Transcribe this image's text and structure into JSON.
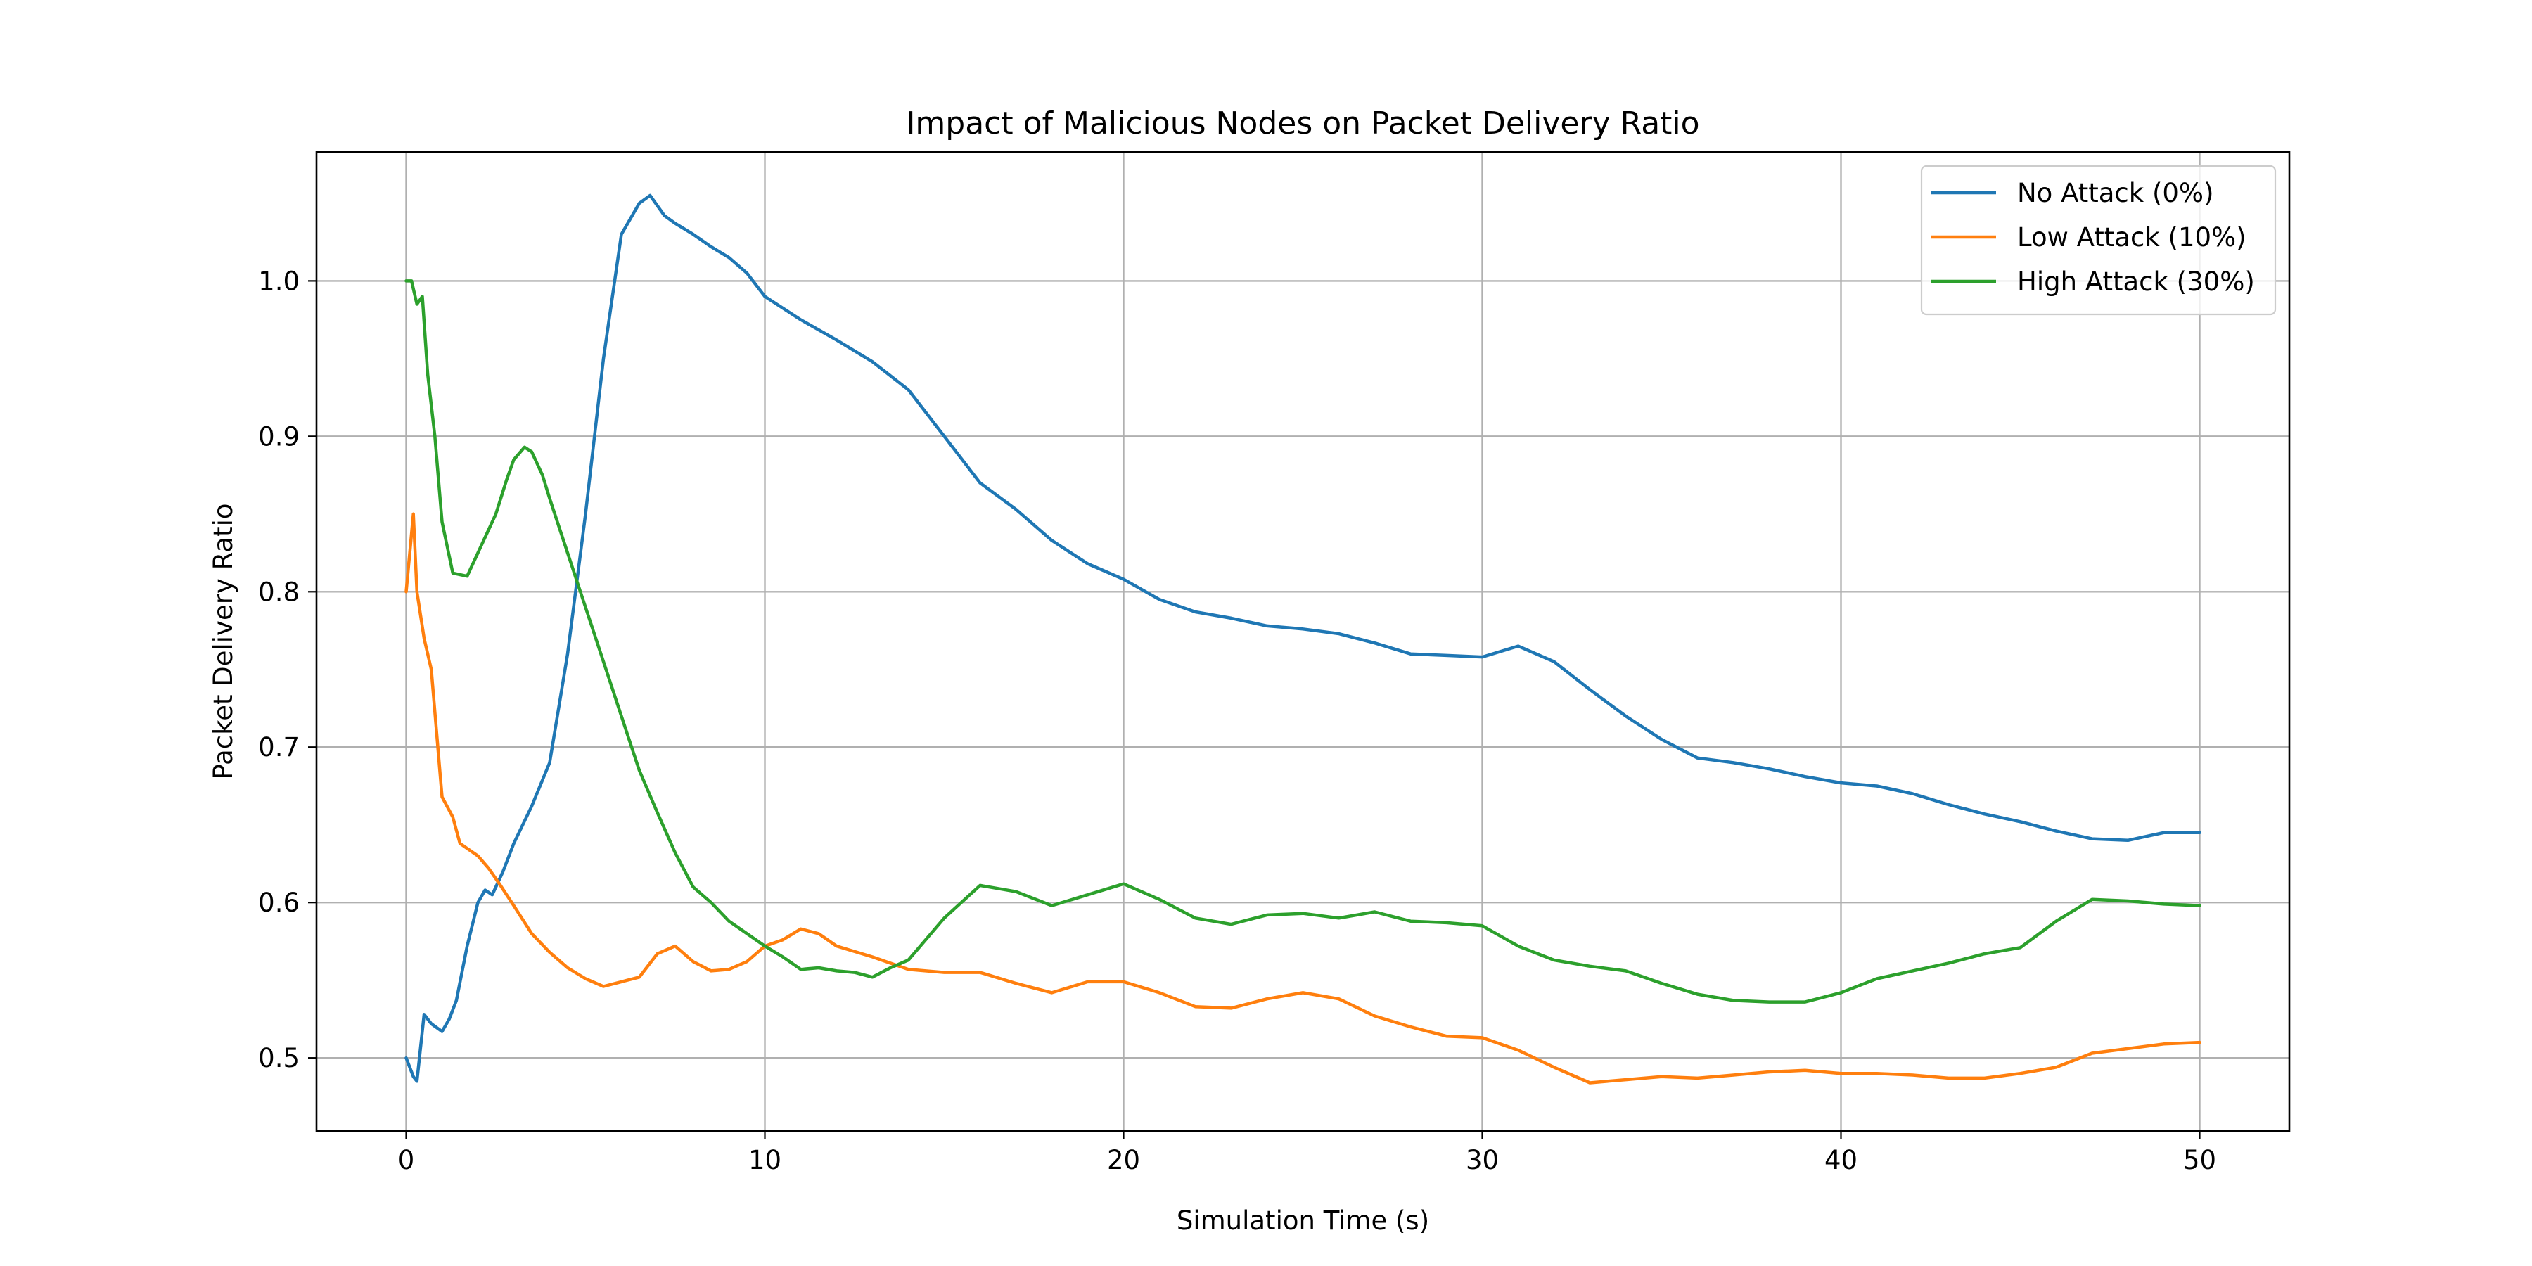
{
  "chart_data": {
    "type": "line",
    "title": "Impact of Malicious Nodes on Packet Delivery Ratio",
    "xlabel": "Simulation Time (s)",
    "ylabel": "Packet Delivery Ratio",
    "xlim": [
      -2.5,
      52.5
    ],
    "ylim": [
      0.453,
      1.083
    ],
    "xticks": [
      0,
      10,
      20,
      30,
      40,
      50
    ],
    "yticks": [
      0.5,
      0.6,
      0.7,
      0.8,
      0.9,
      1.0
    ],
    "xtick_labels": [
      "0",
      "10",
      "20",
      "30",
      "40",
      "50"
    ],
    "ytick_labels": [
      "0.5",
      "0.6",
      "0.7",
      "0.8",
      "0.9",
      "1.0"
    ],
    "grid": true,
    "legend_position": "top-right",
    "series": [
      {
        "name": "No Attack (0%)",
        "color": "#1f77b4",
        "x": [
          0,
          0.2,
          0.3,
          0.5,
          0.7,
          1,
          1.2,
          1.4,
          1.7,
          2,
          2.2,
          2.4,
          2.7,
          3,
          3.5,
          4,
          4.5,
          5,
          5.5,
          6,
          6.5,
          6.8,
          7.2,
          7.5,
          8,
          8.5,
          9,
          9.5,
          10,
          11,
          12,
          13,
          14,
          15,
          16,
          17,
          18,
          19,
          20,
          21,
          22,
          23,
          24,
          25,
          26,
          27,
          28,
          29,
          30,
          31,
          32,
          33,
          34,
          35,
          36,
          37,
          38,
          39,
          40,
          41,
          42,
          43,
          44,
          45,
          46,
          47,
          48,
          49,
          50
        ],
        "values": [
          0.5,
          0.488,
          0.485,
          0.528,
          0.522,
          0.517,
          0.525,
          0.537,
          0.572,
          0.6,
          0.608,
          0.605,
          0.62,
          0.638,
          0.662,
          0.69,
          0.76,
          0.85,
          0.95,
          1.03,
          1.05,
          1.055,
          1.042,
          1.037,
          1.03,
          1.022,
          1.015,
          1.005,
          0.99,
          0.975,
          0.962,
          0.948,
          0.93,
          0.9,
          0.87,
          0.853,
          0.833,
          0.818,
          0.808,
          0.795,
          0.787,
          0.783,
          0.778,
          0.776,
          0.773,
          0.767,
          0.76,
          0.759,
          0.758,
          0.765,
          0.755,
          0.737,
          0.72,
          0.705,
          0.693,
          0.69,
          0.686,
          0.681,
          0.677,
          0.675,
          0.67,
          0.663,
          0.657,
          0.652,
          0.646,
          0.641,
          0.64,
          0.645,
          0.645
        ]
      },
      {
        "name": "Low Attack (10%)",
        "color": "#ff7f0e",
        "x": [
          0,
          0.2,
          0.3,
          0.5,
          0.7,
          1,
          1.3,
          1.5,
          2,
          2.3,
          2.6,
          3,
          3.5,
          4,
          4.5,
          5,
          5.5,
          6,
          6.5,
          7,
          7.5,
          8,
          8.5,
          9,
          9.5,
          10,
          10.5,
          11,
          11.5,
          12,
          13,
          14,
          15,
          16,
          17,
          18,
          19,
          20,
          21,
          22,
          23,
          24,
          25,
          26,
          27,
          28,
          29,
          30,
          31,
          32,
          33,
          34,
          35,
          36,
          37,
          38,
          39,
          40,
          41,
          42,
          43,
          44,
          45,
          46,
          47,
          48,
          49,
          50
        ],
        "values": [
          0.8,
          0.85,
          0.8,
          0.77,
          0.75,
          0.668,
          0.655,
          0.638,
          0.63,
          0.622,
          0.612,
          0.598,
          0.58,
          0.568,
          0.558,
          0.551,
          0.546,
          0.549,
          0.552,
          0.567,
          0.572,
          0.562,
          0.556,
          0.557,
          0.562,
          0.572,
          0.576,
          0.583,
          0.58,
          0.572,
          0.565,
          0.557,
          0.555,
          0.555,
          0.548,
          0.542,
          0.549,
          0.549,
          0.542,
          0.533,
          0.532,
          0.538,
          0.542,
          0.538,
          0.527,
          0.52,
          0.514,
          0.513,
          0.505,
          0.494,
          0.484,
          0.486,
          0.488,
          0.487,
          0.489,
          0.491,
          0.492,
          0.49,
          0.49,
          0.489,
          0.487,
          0.487,
          0.49,
          0.494,
          0.503,
          0.506,
          0.509,
          0.51
        ]
      },
      {
        "name": "High Attack (30%)",
        "color": "#2ca02c",
        "x": [
          0,
          0.15,
          0.3,
          0.45,
          0.6,
          0.8,
          1,
          1.3,
          1.7,
          2,
          2.3,
          2.5,
          2.8,
          3,
          3.3,
          3.5,
          3.8,
          4,
          4.5,
          5,
          5.5,
          6,
          6.5,
          7,
          7.5,
          8,
          8.5,
          9,
          9.5,
          10,
          10.5,
          11,
          11.5,
          12,
          12.5,
          13,
          13.5,
          14,
          15,
          16,
          17,
          18,
          19,
          20,
          21,
          22,
          23,
          24,
          25,
          26,
          27,
          28,
          29,
          30,
          31,
          32,
          33,
          34,
          35,
          36,
          37,
          38,
          39,
          40,
          41,
          42,
          43,
          44,
          45,
          46,
          47,
          48,
          49,
          50
        ],
        "values": [
          1.0,
          1.0,
          0.985,
          0.99,
          0.94,
          0.9,
          0.845,
          0.812,
          0.81,
          0.825,
          0.84,
          0.85,
          0.872,
          0.885,
          0.893,
          0.89,
          0.875,
          0.86,
          0.825,
          0.79,
          0.755,
          0.72,
          0.685,
          0.658,
          0.632,
          0.61,
          0.6,
          0.588,
          0.58,
          0.572,
          0.565,
          0.557,
          0.558,
          0.556,
          0.555,
          0.552,
          0.558,
          0.563,
          0.59,
          0.611,
          0.607,
          0.598,
          0.605,
          0.612,
          0.602,
          0.59,
          0.586,
          0.592,
          0.593,
          0.59,
          0.594,
          0.588,
          0.587,
          0.585,
          0.572,
          0.563,
          0.559,
          0.556,
          0.548,
          0.541,
          0.537,
          0.536,
          0.536,
          0.542,
          0.551,
          0.556,
          0.561,
          0.567,
          0.571,
          0.588,
          0.602,
          0.601,
          0.599,
          0.598
        ]
      }
    ]
  }
}
